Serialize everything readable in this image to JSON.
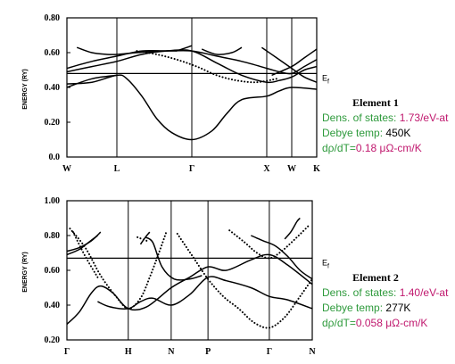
{
  "chart_data": [
    {
      "type": "line",
      "title": "",
      "xlabel": "",
      "ylabel": "ENERGY (RY)",
      "ylim": [
        0.0,
        0.8
      ],
      "y_ticks": [
        "0.80",
        "0.60",
        "0.40",
        "0.20",
        "0.0"
      ],
      "x_ticks": [
        {
          "label": "W",
          "k": 0
        },
        {
          "label": "L",
          "k": 1
        },
        {
          "label": "Γ",
          "k": 2.5
        },
        {
          "label": "X",
          "k": 4
        },
        {
          "label": "W",
          "k": 4.5
        },
        {
          "label": "K",
          "k": 5
        }
      ],
      "xlim": [
        0,
        5
      ],
      "fermi_level": {
        "label": "E",
        "sub": "f",
        "value": 0.48
      },
      "series": [
        {
          "style": "solid",
          "points": [
            [
              0,
              0.49
            ],
            [
              0.5,
              0.52
            ],
            [
              1,
              0.55
            ],
            [
              1.5,
              0.59
            ],
            [
              2,
              0.61
            ],
            [
              2.5,
              0.61
            ],
            [
              3,
              0.54
            ],
            [
              3.5,
              0.47
            ],
            [
              4,
              0.43
            ],
            [
              4.25,
              0.44
            ],
            [
              4.5,
              0.46
            ],
            [
              4.75,
              0.5
            ],
            [
              5,
              0.52
            ]
          ]
        },
        {
          "style": "solid",
          "points": [
            [
              0,
              0.51
            ],
            [
              0.5,
              0.55
            ],
            [
              1,
              0.58
            ],
            [
              1.5,
              0.61
            ],
            [
              2,
              0.61
            ],
            [
              2.5,
              0.61
            ],
            [
              3,
              0.58
            ],
            [
              3.5,
              0.55
            ],
            [
              4,
              0.51
            ],
            [
              4.25,
              0.49
            ],
            [
              4.5,
              0.48
            ],
            [
              4.75,
              0.52
            ],
            [
              5,
              0.56
            ]
          ]
        },
        {
          "style": "solid",
          "points": [
            [
              0.2,
              0.63
            ],
            [
              0.5,
              0.6
            ],
            [
              0.8,
              0.59
            ],
            [
              1,
              0.59
            ],
            [
              1.4,
              0.6
            ],
            [
              1.9,
              0.61
            ],
            [
              2.2,
              0.61
            ]
          ]
        },
        {
          "style": "solid",
          "points": [
            [
              2.2,
              0.61
            ],
            [
              2.4,
              0.63
            ],
            [
              2.5,
              0.64
            ]
          ]
        },
        {
          "style": "solid",
          "points": [
            [
              2.7,
              0.62
            ],
            [
              3,
              0.59
            ],
            [
              3.3,
              0.6
            ],
            [
              3.5,
              0.63
            ]
          ]
        },
        {
          "style": "solid",
          "points": [
            [
              3.9,
              0.63
            ],
            [
              4.2,
              0.57
            ],
            [
              4.5,
              0.51
            ],
            [
              4.75,
              0.46
            ],
            [
              5,
              0.43
            ]
          ]
        },
        {
          "style": "solid",
          "points": [
            [
              4.1,
              0.47
            ],
            [
              4.5,
              0.52
            ],
            [
              4.75,
              0.57
            ],
            [
              5,
              0.62
            ]
          ]
        },
        {
          "style": "solid",
          "points": [
            [
              0,
              0.42
            ],
            [
              0.5,
              0.43
            ],
            [
              1,
              0.47
            ],
            [
              1.2,
              0.45
            ],
            [
              1.5,
              0.35
            ],
            [
              1.8,
              0.22
            ],
            [
              2.1,
              0.14
            ],
            [
              2.5,
              0.1
            ],
            [
              2.9,
              0.15
            ],
            [
              3.2,
              0.25
            ],
            [
              3.5,
              0.33
            ],
            [
              4,
              0.35
            ],
            [
              4.25,
              0.38
            ],
            [
              4.5,
              0.4
            ],
            [
              5,
              0.39
            ]
          ]
        },
        {
          "style": "solid",
          "points": [
            [
              0,
              0.4
            ],
            [
              0.5,
              0.45
            ],
            [
              1,
              0.47
            ]
          ]
        },
        {
          "style": "dotted",
          "points": [
            [
              1.4,
              0.61
            ],
            [
              1.8,
              0.59
            ],
            [
              2.2,
              0.56
            ],
            [
              2.6,
              0.52
            ],
            [
              3,
              0.47
            ],
            [
              3.4,
              0.44
            ],
            [
              3.8,
              0.43
            ],
            [
              4.2,
              0.45
            ]
          ]
        }
      ]
    },
    {
      "type": "line",
      "title": "",
      "xlabel": "",
      "ylabel": "ENERGY (RY)",
      "ylim": [
        0.2,
        1.0
      ],
      "y_ticks": [
        "1.00",
        "0.80",
        "0.60",
        "0.40",
        "0.20"
      ],
      "x_ticks": [
        {
          "label": "Γ",
          "k": 0
        },
        {
          "label": "H",
          "k": 1
        },
        {
          "label": "N",
          "k": 1.7
        },
        {
          "label": "P",
          "k": 2.3
        },
        {
          "label": "Γ",
          "k": 3.3
        },
        {
          "label": "N",
          "k": 4
        }
      ],
      "xlim": [
        0,
        4
      ],
      "fermi_level": {
        "label": "E",
        "sub": "f",
        "value": 0.67
      },
      "series": [
        {
          "style": "solid",
          "points": [
            [
              0,
              0.71
            ],
            [
              0.2,
              0.73
            ],
            [
              0.4,
              0.77
            ],
            [
              0.55,
              0.82
            ]
          ]
        },
        {
          "style": "solid",
          "points": [
            [
              0,
              0.69
            ],
            [
              0.2,
              0.72
            ],
            [
              0.35,
              0.76
            ],
            [
              0.5,
              0.8
            ]
          ]
        },
        {
          "style": "solid",
          "points": [
            [
              0,
              0.29
            ],
            [
              0.2,
              0.36
            ],
            [
              0.4,
              0.47
            ],
            [
              0.55,
              0.51
            ],
            [
              0.75,
              0.47
            ],
            [
              1,
              0.38
            ],
            [
              1.3,
              0.39
            ],
            [
              1.7,
              0.5
            ],
            [
              2,
              0.56
            ],
            [
              2.3,
              0.62
            ],
            [
              2.6,
              0.6
            ],
            [
              3,
              0.66
            ],
            [
              3.3,
              0.69
            ],
            [
              3.6,
              0.63
            ],
            [
              4,
              0.52
            ]
          ]
        },
        {
          "style": "solid",
          "points": [
            [
              0.5,
              0.42
            ],
            [
              0.7,
              0.39
            ],
            [
              1,
              0.38
            ],
            [
              1.2,
              0.42
            ],
            [
              1.4,
              0.44
            ],
            [
              1.7,
              0.4
            ],
            [
              2,
              0.46
            ],
            [
              2.3,
              0.56
            ],
            [
              2.6,
              0.54
            ],
            [
              3,
              0.5
            ],
            [
              3.3,
              0.45
            ],
            [
              3.6,
              0.43
            ],
            [
              4,
              0.38
            ]
          ]
        },
        {
          "style": "solid",
          "points": [
            [
              1.28,
              0.79
            ],
            [
              1.4,
              0.76
            ],
            [
              1.55,
              0.62
            ],
            [
              1.75,
              0.55
            ],
            [
              2,
              0.55
            ],
            [
              2.2,
              0.57
            ]
          ]
        },
        {
          "style": "solid",
          "points": [
            [
              3.0,
              0.8
            ],
            [
              3.2,
              0.77
            ],
            [
              3.4,
              0.74
            ],
            [
              3.6,
              0.68
            ],
            [
              3.8,
              0.6
            ],
            [
              4,
              0.55
            ]
          ]
        },
        {
          "style": "solid",
          "points": [
            [
              3.55,
              0.78
            ],
            [
              3.65,
              0.82
            ],
            [
              3.75,
              0.88
            ],
            [
              3.8,
              0.9
            ]
          ]
        },
        {
          "style": "solid",
          "points": [
            [
              1.2,
              0.75
            ],
            [
              1.28,
              0.79
            ],
            [
              1.35,
              0.82
            ]
          ]
        },
        {
          "style": "dotted",
          "points": [
            [
              0.05,
              0.84
            ],
            [
              0.3,
              0.73
            ],
            [
              0.55,
              0.57
            ],
            [
              0.8,
              0.45
            ],
            [
              1,
              0.38
            ],
            [
              1.2,
              0.44
            ],
            [
              1.35,
              0.56
            ],
            [
              1.5,
              0.7
            ],
            [
              1.62,
              0.82
            ]
          ]
        },
        {
          "style": "dotted",
          "points": [
            [
              0.1,
              0.82
            ],
            [
              0.3,
              0.68
            ],
            [
              0.5,
              0.56
            ]
          ]
        },
        {
          "style": "dotted",
          "points": [
            [
              1.8,
              0.81
            ],
            [
              2.05,
              0.68
            ],
            [
              2.3,
              0.55
            ],
            [
              2.55,
              0.45
            ],
            [
              2.8,
              0.38
            ],
            [
              3.05,
              0.3
            ],
            [
              3.3,
              0.27
            ],
            [
              3.55,
              0.33
            ],
            [
              3.8,
              0.45
            ],
            [
              4,
              0.55
            ]
          ]
        },
        {
          "style": "dotted",
          "points": [
            [
              2.65,
              0.83
            ],
            [
              2.9,
              0.76
            ],
            [
              3.1,
              0.7
            ],
            [
              3.3,
              0.67
            ],
            [
              3.5,
              0.71
            ],
            [
              3.75,
              0.79
            ],
            [
              3.95,
              0.86
            ]
          ]
        },
        {
          "style": "dotted",
          "points": [
            [
              1.15,
              0.79
            ],
            [
              1.3,
              0.77
            ]
          ]
        }
      ]
    }
  ],
  "elements": [
    {
      "title": "Element 1",
      "dos_label": "Dens. of states:",
      "dos_value": "1.73/eV-at",
      "debye_label": "Debye temp:",
      "debye_value": "450K",
      "drho_label": "dρ/dT=",
      "drho_value": "0.18 μΩ-cm/K"
    },
    {
      "title": "Element 2",
      "dos_label": "Dens. of states:",
      "dos_value": "1.40/eV-at",
      "debye_label": "Debye temp:",
      "debye_value": "277K",
      "drho_label": "dρ/dT=",
      "drho_value": "0.058 μΩ-cm/K"
    }
  ],
  "colors": {
    "green": "#2e9a3c",
    "magenta": "#c0186e",
    "ink": "#000000"
  }
}
